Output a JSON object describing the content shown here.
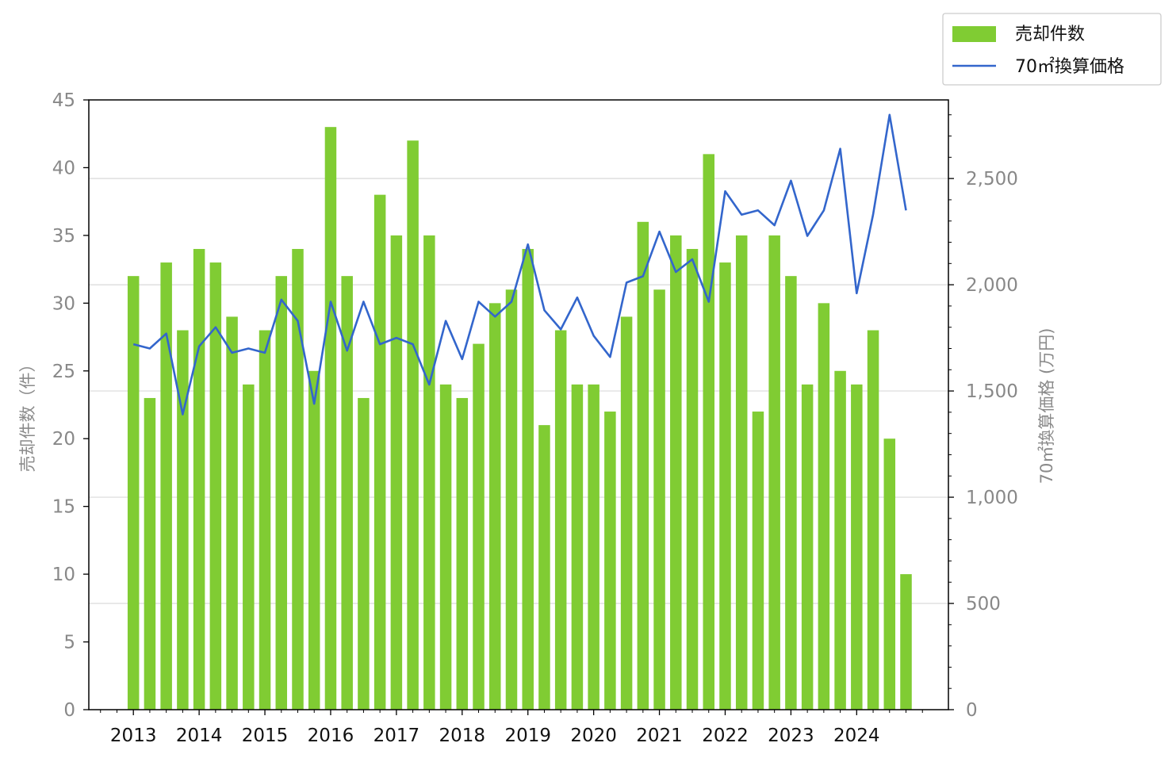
{
  "chart_data": {
    "type": "bar",
    "x_axis": {
      "start_year": 2013,
      "tick_labels": [
        "2013",
        "2014",
        "2015",
        "2016",
        "2017",
        "2018",
        "2019",
        "2020",
        "2021",
        "2022",
        "2023",
        "2024"
      ]
    },
    "left_axis": {
      "label": "売却件数（件）",
      "ylim": [
        0,
        45
      ],
      "ticks": [
        0,
        5,
        10,
        15,
        20,
        25,
        30,
        35,
        40,
        45
      ],
      "tick_labels": [
        "0",
        "5",
        "10",
        "15",
        "20",
        "25",
        "30",
        "35",
        "40",
        "45"
      ]
    },
    "right_axis": {
      "label": "70㎡換算価格 (万円)",
      "ylim": [
        0,
        2870
      ],
      "ticks": [
        0,
        500,
        1000,
        1500,
        2000,
        2500
      ],
      "tick_labels": [
        "0",
        "500",
        "1,000",
        "1,500",
        "2,000",
        "2,500"
      ]
    },
    "periods": [
      "2013 Q1",
      "2013 Q2",
      "2013 Q3",
      "2013 Q4",
      "2014 Q1",
      "2014 Q2",
      "2014 Q3",
      "2014 Q4",
      "2015 Q1",
      "2015 Q2",
      "2015 Q3",
      "2015 Q4",
      "2016 Q1",
      "2016 Q2",
      "2016 Q3",
      "2016 Q4",
      "2017 Q1",
      "2017 Q2",
      "2017 Q3",
      "2017 Q4",
      "2018 Q1",
      "2018 Q2",
      "2018 Q3",
      "2018 Q4",
      "2019 Q1",
      "2019 Q2",
      "2019 Q3",
      "2019 Q4",
      "2020 Q1",
      "2020 Q2",
      "2020 Q3",
      "2020 Q4",
      "2021 Q1",
      "2021 Q2",
      "2021 Q3",
      "2021 Q4",
      "2022 Q1",
      "2022 Q2",
      "2022 Q3",
      "2022 Q4",
      "2023 Q1",
      "2023 Q2",
      "2023 Q3",
      "2023 Q4",
      "2024 Q1",
      "2024 Q2",
      "2024 Q3",
      "2024 Q4"
    ],
    "series": [
      {
        "name": "売却件数",
        "type": "bar",
        "axis": "left",
        "color": "#80cc33",
        "values": [
          32,
          23,
          33,
          28,
          34,
          33,
          29,
          24,
          28,
          32,
          34,
          25,
          43,
          32,
          23,
          38,
          35,
          42,
          35,
          24,
          23,
          27,
          30,
          31,
          34,
          21,
          28,
          24,
          24,
          22,
          29,
          36,
          31,
          35,
          34,
          41,
          33,
          35,
          22,
          35,
          32,
          24,
          30,
          25,
          24,
          28,
          20,
          10
        ]
      },
      {
        "name": "70㎡換算価格",
        "type": "line",
        "axis": "right",
        "color": "#3366cc",
        "values": [
          1720,
          1700,
          1770,
          1390,
          1710,
          1800,
          1680,
          1700,
          1680,
          1930,
          1830,
          1440,
          1920,
          1690,
          1920,
          1720,
          1750,
          1720,
          1530,
          1830,
          1650,
          1920,
          1850,
          1920,
          2190,
          1880,
          1790,
          1940,
          1760,
          1660,
          2010,
          2040,
          2250,
          2060,
          2120,
          1920,
          2440,
          2330,
          2350,
          2280,
          2490,
          2230,
          2350,
          2640,
          1960,
          2330,
          2800,
          2350
        ]
      }
    ],
    "grid": "horizontal (right axis)",
    "legend_position": "top-right, outside"
  }
}
